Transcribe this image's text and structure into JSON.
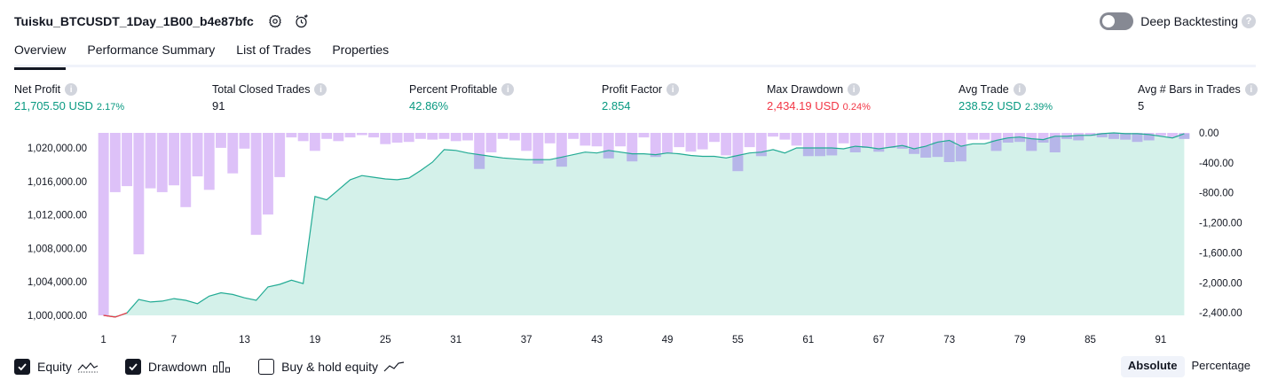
{
  "header": {
    "title": "Tuisku_BTCUSDT_1Day_1B00_b4e87bfc",
    "deep_backtesting_label": "Deep Backtesting",
    "deep_backtesting_on": false
  },
  "tabs": [
    {
      "label": "Overview",
      "active": true
    },
    {
      "label": "Performance Summary",
      "active": false
    },
    {
      "label": "List of Trades",
      "active": false
    },
    {
      "label": "Properties",
      "active": false
    }
  ],
  "metrics": {
    "net_profit": {
      "label": "Net Profit",
      "value": "21,705.50 USD",
      "pct": "2.17%"
    },
    "total_closed_trades": {
      "label": "Total Closed Trades",
      "value": "91"
    },
    "percent_profitable": {
      "label": "Percent Profitable",
      "value": "42.86%"
    },
    "profit_factor": {
      "label": "Profit Factor",
      "value": "2.854"
    },
    "max_drawdown": {
      "label": "Max Drawdown",
      "value": "2,434.19 USD",
      "pct": "0.24%"
    },
    "avg_trade": {
      "label": "Avg Trade",
      "value": "238.52 USD",
      "pct": "2.39%"
    },
    "avg_bars": {
      "label": "Avg # Bars in Trades",
      "value": "5"
    }
  },
  "chart_data": {
    "type": "area",
    "x_ticks": [
      "1",
      "7",
      "13",
      "19",
      "25",
      "31",
      "37",
      "43",
      "49",
      "55",
      "61",
      "67",
      "73",
      "79",
      "85",
      "91"
    ],
    "left_axis": {
      "ticks": [
        "1,000,000.00",
        "1,004,000.00",
        "1,008,000.00",
        "1,012,000.00",
        "1,016,000.00",
        "1,020,000.00"
      ],
      "ylim": [
        1000000,
        1021800
      ]
    },
    "right_axis": {
      "ticks": [
        "0.00",
        "-400.00",
        "-800.00",
        "-1,200.00",
        "-1,600.00",
        "-2,000.00",
        "-2,400.00"
      ],
      "ylim": [
        -2434.19,
        0
      ]
    },
    "equity": [
      1000000,
      999800,
      1000300,
      1001900,
      1001600,
      1001700,
      1002000,
      1001800,
      1001400,
      1002300,
      1002700,
      1002500,
      1002100,
      1001800,
      1003400,
      1003700,
      1004200,
      1003800,
      1014200,
      1013800,
      1015000,
      1016200,
      1016700,
      1016500,
      1016300,
      1016200,
      1016400,
      1017300,
      1018300,
      1019800,
      1019700,
      1019400,
      1019200,
      1019000,
      1018800,
      1018700,
      1018600,
      1018600,
      1018600,
      1018900,
      1019200,
      1019500,
      1019400,
      1019700,
      1019500,
      1019300,
      1019300,
      1019200,
      1019400,
      1019300,
      1019100,
      1019000,
      1019000,
      1018800,
      1019100,
      1019400,
      1019500,
      1019800,
      1019400,
      1020000,
      1020000,
      1020000,
      1020000,
      1019900,
      1020200,
      1020100,
      1019900,
      1020100,
      1020300,
      1019900,
      1020200,
      1020700,
      1020900,
      1020200,
      1020500,
      1020500,
      1020900,
      1021200,
      1021300,
      1021100,
      1021000,
      1021400,
      1021400,
      1021500,
      1021500,
      1021700,
      1021800,
      1021700,
      1021700,
      1021600,
      1021400,
      1021200,
      1021705
    ],
    "drawdown": [
      -2434.19,
      -790,
      -710,
      -1620,
      -740,
      -790,
      -700,
      -990,
      -580,
      -760,
      -200,
      -540,
      -210,
      -1360,
      -1090,
      -590,
      -60,
      -110,
      -240,
      -80,
      -110,
      -60,
      -30,
      -60,
      -150,
      -130,
      -120,
      -80,
      -90,
      -80,
      -110,
      -100,
      -480,
      -260,
      -80,
      -100,
      -240,
      -410,
      -140,
      -450,
      -80,
      -170,
      -180,
      -340,
      -180,
      -380,
      -60,
      -320,
      -270,
      -190,
      -250,
      -220,
      -120,
      -300,
      -510,
      -190,
      -310,
      -50,
      -90,
      -170,
      -310,
      -310,
      -300,
      -140,
      -260,
      -200,
      -250,
      -200,
      -210,
      -280,
      -330,
      -320,
      -390,
      -380,
      -90,
      -90,
      -240,
      -130,
      -120,
      -240,
      -130,
      -260,
      -80,
      -100,
      -40,
      -60,
      -80,
      -90,
      -120,
      -100,
      -40,
      -60,
      -80
    ]
  },
  "footer": {
    "equity_label": "Equity",
    "drawdown_label": "Drawdown",
    "buyhold_label": "Buy & hold equity",
    "equity_checked": true,
    "drawdown_checked": true,
    "buyhold_checked": false,
    "mode_absolute": "Absolute",
    "mode_percentage": "Percentage"
  },
  "colors": {
    "equity_line": "#22ab94",
    "equity_negative_line": "#f23645",
    "equity_fill": "#cdeee6",
    "drawdown_bar": "#d7b6f7",
    "overlap_bar": "#b2b5e8",
    "positive_text": "#089981",
    "negative_text": "#f23645"
  }
}
